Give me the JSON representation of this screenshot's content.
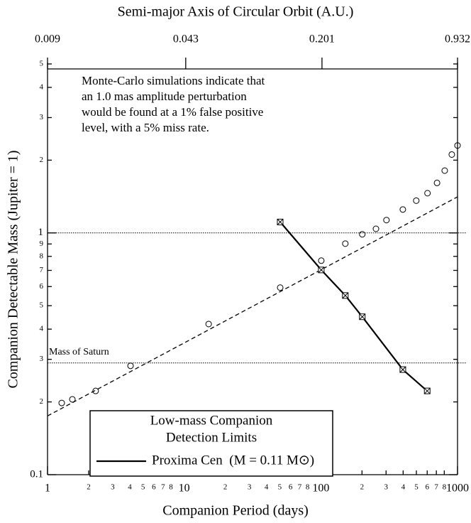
{
  "chart_data": {
    "type": "scatter",
    "xlabel": "Companion Period (days)",
    "ylabel": "Companion Detectable Mass (Jupiter = 1)",
    "x2label": "Semi-major Axis of Circular Orbit (A.U.)",
    "xscale": "log",
    "yscale": "log",
    "x2scale": "log",
    "xlim": [
      1,
      1000
    ],
    "ylim": [
      0.1,
      5
    ],
    "x2lim": [
      0.009,
      0.932
    ],
    "xticks": [
      1,
      2,
      3,
      4,
      5,
      6,
      7,
      8,
      10,
      {
        "value": 20,
        "label": "2"
      },
      {
        "value": 30,
        "label": "3"
      },
      {
        "value": 40,
        "label": "4"
      },
      {
        "value": 50,
        "label": "5"
      },
      {
        "value": 60,
        "label": "6"
      },
      {
        "value": 70,
        "label": "7"
      },
      {
        "value": 80,
        "label": "8"
      },
      100,
      {
        "value": 200,
        "label": "2"
      },
      {
        "value": 300,
        "label": "3"
      },
      {
        "value": 400,
        "label": "4"
      },
      {
        "value": 500,
        "label": "5"
      },
      {
        "value": 600,
        "label": "6"
      },
      {
        "value": 700,
        "label": "7"
      },
      {
        "value": 800,
        "label": "8"
      },
      1000
    ],
    "x2ticks": [
      0.009,
      0.043,
      0.201,
      0.932
    ],
    "yticks": [
      {
        "value": 0.1,
        "label": "0.1"
      },
      {
        "value": 0.2,
        "label": "2"
      },
      {
        "value": 0.3,
        "label": "3"
      },
      {
        "value": 0.4,
        "label": "4"
      },
      {
        "value": 0.5,
        "label": "5"
      },
      {
        "value": 0.6,
        "label": "6"
      },
      {
        "value": 0.7,
        "label": "7"
      },
      {
        "value": 0.8,
        "label": "8"
      },
      {
        "value": 0.9,
        "label": "9"
      },
      1,
      2,
      3,
      4,
      5
    ],
    "reference_lines": [
      {
        "value": 1
      },
      {
        "value": 0.29,
        "label": "Mass of Saturn"
      }
    ],
    "annotation": [
      "Monte-Carlo simulations indicate that",
      "an 1.0 mas amplitude perturbation",
      "would be found at a 1% false positive",
      "level, with a 5% miss rate."
    ],
    "legend_title": [
      "Low-mass Companion",
      "Detection Limits"
    ],
    "series": [
      {
        "type": "scatter",
        "marker": "circle",
        "color": "#000000",
        "x": [
          1.27,
          1.52,
          2.25,
          4.05,
          15.1,
          50.4,
          100.7,
          151,
          201,
          253,
          302,
          398,
          499,
          603,
          708,
          806,
          908,
          1000
        ],
        "values": [
          0.198,
          0.205,
          0.222,
          0.282,
          0.42,
          0.594,
          0.768,
          0.903,
          0.987,
          1.04,
          1.13,
          1.25,
          1.36,
          1.46,
          1.61,
          1.81,
          2.11,
          2.3
        ]
      },
      {
        "type": "line",
        "style": "dashed",
        "color": "#000000",
        "x": [
          1,
          1000
        ],
        "values": [
          0.175,
          1.41
        ]
      },
      {
        "name": "Proxima Cen  (M = 0.11 M⊙)",
        "type": "line",
        "marker": "boxed-x",
        "color": "#000000",
        "x": [
          50.4,
          100.7,
          151,
          201,
          398,
          600
        ],
        "values": [
          1.11,
          0.703,
          0.551,
          0.45,
          0.272,
          0.222
        ]
      }
    ]
  }
}
